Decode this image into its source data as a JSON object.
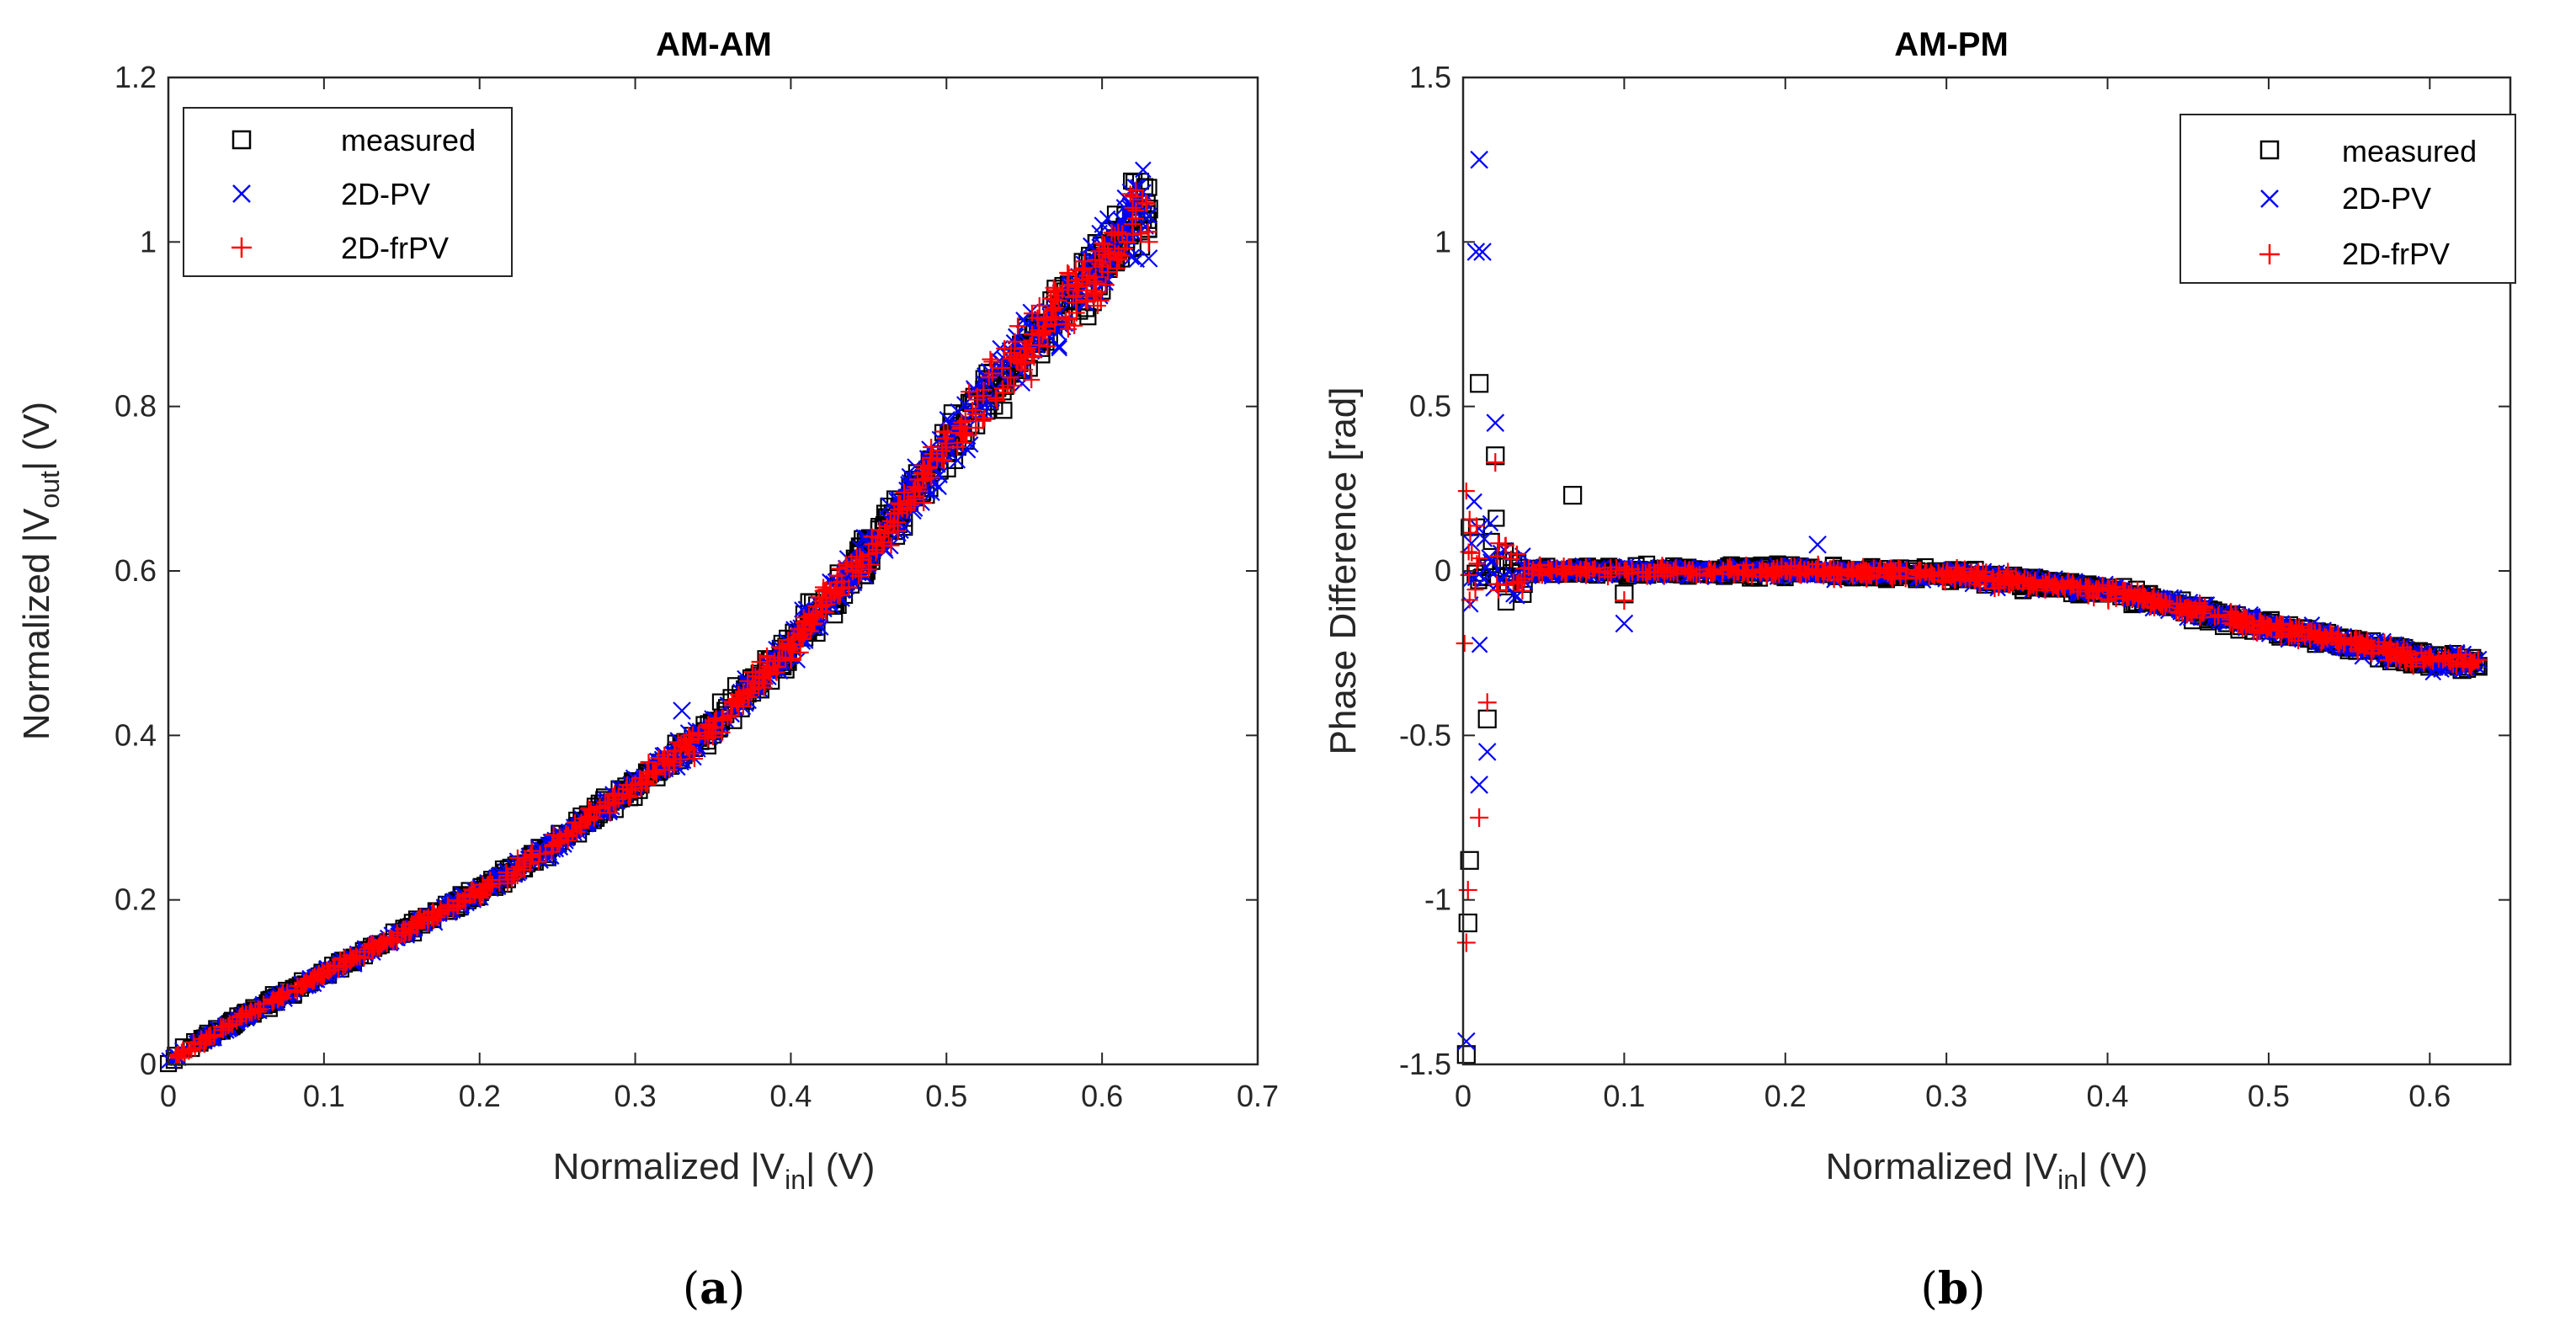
{
  "chart_data": [
    {
      "panel": "(a)",
      "panel_letter": "a",
      "type": "scatter",
      "title": "AM-AM",
      "xlabel_pre": "Normalized |V",
      "xlabel_sub": "in",
      "xlabel_post": "| (V)",
      "ylabel_pre": "Normalized |V",
      "ylabel_sub": "out",
      "ylabel_post": "| (V)",
      "xlim": [
        0,
        0.7
      ],
      "ylim": [
        0,
        1.2
      ],
      "xticks": [
        "0",
        "0.1",
        "0.2",
        "0.3",
        "0.4",
        "0.5",
        "0.6",
        "0.7"
      ],
      "xtick_values": [
        0,
        0.1,
        0.2,
        0.3,
        0.4,
        0.5,
        0.6,
        0.7
      ],
      "yticks": [
        "0",
        "0.2",
        "0.4",
        "0.6",
        "0.8",
        "1",
        "1.2"
      ],
      "ytick_values": [
        0,
        0.2,
        0.4,
        0.6,
        0.8,
        1.0,
        1.2
      ],
      "legend_position": "top-left",
      "series": [
        {
          "name": "measured",
          "marker": "square",
          "color": "#000000",
          "x": [
            0.005,
            0.05,
            0.1,
            0.15,
            0.2,
            0.25,
            0.3,
            0.33,
            0.35,
            0.4,
            0.45,
            0.5,
            0.55,
            0.58,
            0.6,
            0.62,
            0.63
          ],
          "y": [
            0.01,
            0.06,
            0.11,
            0.16,
            0.21,
            0.27,
            0.34,
            0.38,
            0.41,
            0.51,
            0.62,
            0.75,
            0.87,
            0.93,
            0.97,
            1.03,
            1.04
          ]
        },
        {
          "name": "2D-PV",
          "marker": "x",
          "color": "#0000ff",
          "x": [
            0.005,
            0.05,
            0.1,
            0.15,
            0.2,
            0.25,
            0.3,
            0.33,
            0.35,
            0.4,
            0.45,
            0.5,
            0.55,
            0.6,
            0.63
          ],
          "y": [
            0.01,
            0.06,
            0.11,
            0.16,
            0.21,
            0.27,
            0.34,
            0.43,
            0.41,
            0.51,
            0.62,
            0.75,
            0.87,
            0.96,
            0.98
          ]
        },
        {
          "name": "2D-frPV",
          "marker": "plus",
          "color": "#ff0000",
          "x": [
            0.005,
            0.05,
            0.1,
            0.15,
            0.2,
            0.25,
            0.3,
            0.35,
            0.4,
            0.45,
            0.5,
            0.55,
            0.6,
            0.63
          ],
          "y": [
            0.01,
            0.06,
            0.11,
            0.16,
            0.21,
            0.27,
            0.34,
            0.41,
            0.51,
            0.62,
            0.75,
            0.87,
            0.97,
            1.0
          ]
        }
      ]
    },
    {
      "panel": "(b)",
      "panel_letter": "b",
      "type": "scatter",
      "title": "AM-PM",
      "xlabel_pre": "Normalized |V",
      "xlabel_sub": "in",
      "xlabel_post": "| (V)",
      "ylabel": "Phase Difference [rad]",
      "xlim": [
        0,
        0.65
      ],
      "ylim": [
        -1.5,
        1.5
      ],
      "xticks": [
        "0",
        "0.1",
        "0.2",
        "0.3",
        "0.4",
        "0.5",
        "0.6"
      ],
      "xtick_values": [
        0,
        0.1,
        0.2,
        0.3,
        0.4,
        0.5,
        0.6
      ],
      "yticks": [
        "-1.5",
        "-1",
        "-0.5",
        "0",
        "0.5",
        "1",
        "1.5"
      ],
      "ytick_values": [
        -1.5,
        -1.0,
        -0.5,
        0,
        0.5,
        1.0,
        1.5
      ],
      "legend_position": "top-right",
      "series": [
        {
          "name": "measured",
          "marker": "square",
          "color": "#000000",
          "x": [
            0.002,
            0.003,
            0.004,
            0.01,
            0.015,
            0.02,
            0.068,
            0.1,
            0.2,
            0.3,
            0.4,
            0.5,
            0.55,
            0.6,
            0.62,
            0.63
          ],
          "y": [
            -1.47,
            -1.07,
            -0.88,
            0.57,
            -0.45,
            0.35,
            0.23,
            -0.07,
            0.0,
            -0.01,
            -0.06,
            -0.18,
            -0.24,
            -0.29,
            -0.3,
            -0.29
          ]
        },
        {
          "name": "2D-PV",
          "marker": "x",
          "color": "#0000ff",
          "x": [
            0.002,
            0.01,
            0.008,
            0.012,
            0.01,
            0.015,
            0.02,
            0.1,
            0.22,
            0.3,
            0.4,
            0.5,
            0.6,
            0.63
          ],
          "y": [
            -1.43,
            1.25,
            0.97,
            0.97,
            -0.65,
            -0.55,
            0.45,
            -0.16,
            0.08,
            -0.01,
            -0.06,
            -0.18,
            -0.28,
            -0.27
          ]
        },
        {
          "name": "2D-frPV",
          "marker": "plus",
          "color": "#ff0000",
          "x": [
            0.002,
            0.003,
            0.01,
            0.015,
            0.02,
            0.1,
            0.2,
            0.3,
            0.4,
            0.5,
            0.6,
            0.63
          ],
          "y": [
            -1.13,
            -0.97,
            -0.75,
            -0.4,
            0.33,
            -0.09,
            0.0,
            -0.01,
            -0.06,
            -0.17,
            -0.26,
            -0.27
          ]
        }
      ]
    }
  ]
}
